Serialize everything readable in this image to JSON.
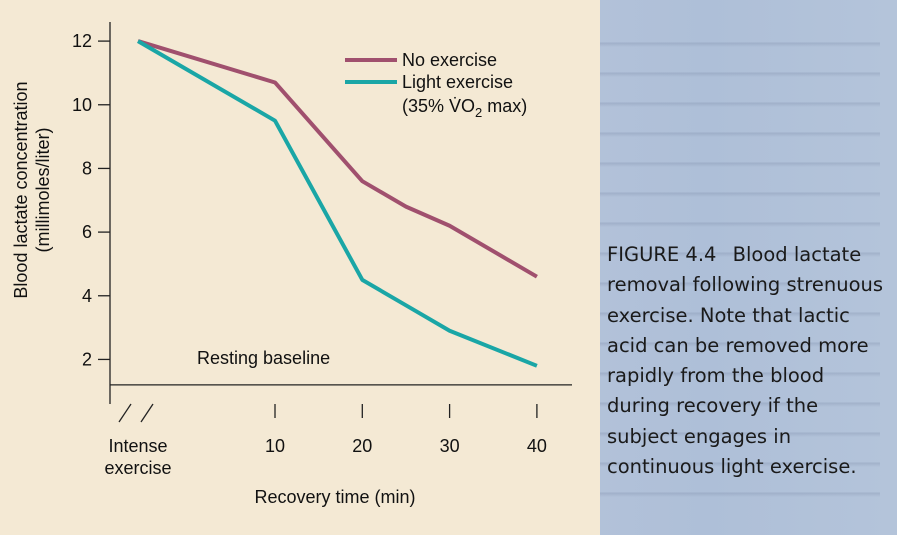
{
  "chart_data": {
    "type": "line",
    "ylabel_line1": "Blood lactate concentration",
    "ylabel_line2": "(millimoles/liter)",
    "xlabel": "Recovery time (min)",
    "ylim": [
      0.6,
      12.6
    ],
    "yticks": [
      2,
      4,
      6,
      8,
      10,
      12
    ],
    "x": [
      0,
      10,
      20,
      30,
      40
    ],
    "xtick_labels": [
      {
        "x": 0,
        "line1": "Intense",
        "line2": "exercise"
      },
      {
        "x": 10,
        "line1": "10"
      },
      {
        "x": 20,
        "line1": "20"
      },
      {
        "x": 30,
        "line1": "30"
      },
      {
        "x": 40,
        "line1": "40"
      }
    ],
    "series": [
      {
        "name": "No exercise",
        "color": "#a0506e",
        "points": [
          [
            0,
            12.0
          ],
          [
            10,
            10.7
          ],
          [
            20,
            7.6
          ],
          [
            25,
            6.8
          ],
          [
            30,
            6.2
          ],
          [
            40,
            4.6
          ]
        ]
      },
      {
        "name": "Light exercise",
        "name_line2": "(35% V̇O",
        "name_sub": "2",
        "name_tail": " max)",
        "color": "#1aa6a6",
        "points": [
          [
            0,
            12.0
          ],
          [
            10,
            9.5
          ],
          [
            20,
            4.5
          ],
          [
            25,
            3.7
          ],
          [
            30,
            2.9
          ],
          [
            40,
            1.8
          ]
        ]
      }
    ],
    "baseline": {
      "value": 1.2,
      "label": "Resting baseline"
    }
  },
  "caption": {
    "figure_label": "FIGURE 4.4",
    "text": "Blood lactate removal following strenuous exercise. Note that lactic acid can be removed more rapidly from the blood during recovery if the subject engages in continuous light exercise."
  }
}
